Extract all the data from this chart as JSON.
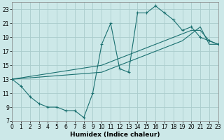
{
  "xlabel": "Humidex (Indice chaleur)",
  "xlim": [
    0,
    23
  ],
  "ylim": [
    7,
    24
  ],
  "xticks": [
    0,
    1,
    2,
    3,
    4,
    5,
    6,
    7,
    8,
    9,
    10,
    11,
    12,
    13,
    14,
    15,
    16,
    17,
    18,
    19,
    20,
    21,
    22,
    23
  ],
  "yticks": [
    7,
    9,
    11,
    13,
    15,
    17,
    19,
    21,
    23
  ],
  "bg_color": "#cce8e8",
  "grid_color": "#aacccc",
  "line_color": "#1a7070",
  "line1_x": [
    0,
    1,
    2,
    3,
    4,
    5,
    6,
    7,
    8,
    9,
    10,
    11,
    12,
    13,
    14,
    15,
    16,
    17,
    18,
    19,
    20,
    21,
    22,
    23
  ],
  "line1_y": [
    13,
    12,
    10.5,
    9.5,
    9,
    9,
    8.5,
    8.5,
    7.5,
    11,
    18,
    21,
    14.5,
    14,
    22.5,
    22.5,
    23.5,
    22.5,
    21.5,
    20,
    20.5,
    19,
    18.5,
    18
  ],
  "line2_x": [
    0,
    10,
    11,
    12,
    13,
    14,
    15,
    16,
    17,
    18,
    19,
    20,
    21,
    22,
    23
  ],
  "line2_y": [
    13,
    15,
    15.5,
    16,
    16.5,
    17,
    17.5,
    18,
    18.5,
    19,
    19.5,
    20,
    20,
    18.5,
    18
  ],
  "line3_x": [
    0,
    10,
    11,
    12,
    13,
    14,
    15,
    16,
    17,
    18,
    19,
    20,
    21,
    22,
    23
  ],
  "line3_y": [
    13,
    14,
    14.5,
    15,
    15.5,
    16,
    16.5,
    17,
    17.5,
    18,
    18.5,
    19.5,
    20.5,
    18,
    18
  ]
}
